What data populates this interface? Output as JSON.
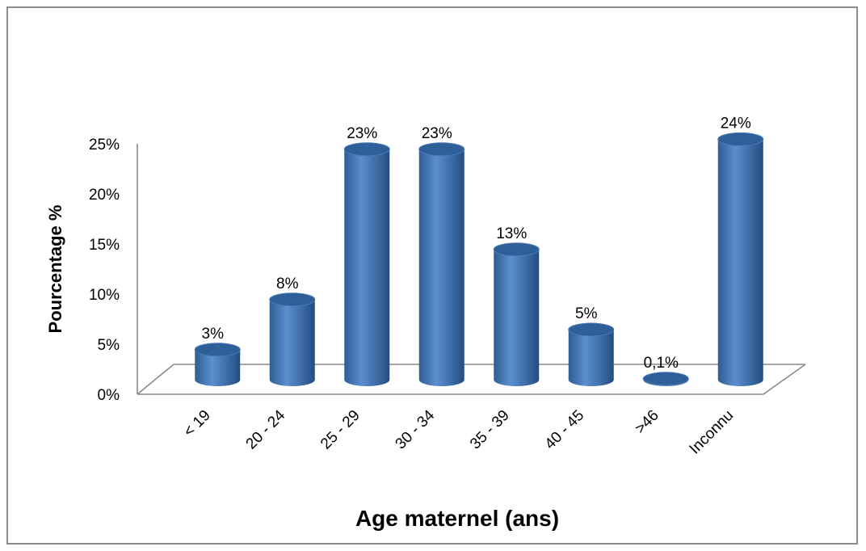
{
  "chart_data": {
    "type": "bar",
    "title": "",
    "xlabel": "Age maternel (ans)",
    "ylabel": "Pourcentage  %",
    "categories": [
      "< 19",
      "20 - 24",
      "25 - 29",
      "30 - 34",
      "35 - 39",
      "40 - 45",
      ">46",
      "Inconnu"
    ],
    "values": [
      3,
      8,
      23,
      23,
      13,
      5,
      0.1,
      24
    ],
    "data_labels": [
      "3%",
      "8%",
      "23%",
      "23%",
      "13%",
      "5%",
      "0,1%",
      "24%"
    ],
    "ylim": [
      0,
      25
    ],
    "yticks": [
      "0%",
      "5%",
      "10%",
      "15%",
      "20%",
      "25%"
    ],
    "grid": false,
    "legend": "none",
    "style": "3d-cylinder",
    "bar_color": "#4f81bd"
  }
}
